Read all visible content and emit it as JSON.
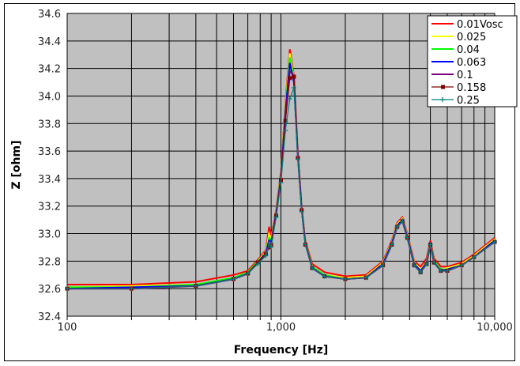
{
  "chart_data": {
    "type": "line",
    "title": "",
    "xlabel": "Frequency [Hz]",
    "ylabel": "Z [ohm]",
    "xscale": "log",
    "xlim": [
      100,
      10000
    ],
    "ylim": [
      32.4,
      34.6
    ],
    "x_tick_labels": [
      "100",
      "1,000",
      "10,000"
    ],
    "y_tick_labels": [
      "32.4",
      "32.6",
      "32.8",
      "33.0",
      "33.2",
      "33.4",
      "33.6",
      "33.8",
      "34.0",
      "34.2",
      "34.4",
      "34.6"
    ],
    "grid": true,
    "plot_background": "#c0c0c0",
    "legend_position": "upper right",
    "x": [
      100,
      200,
      400,
      600,
      700,
      780,
      850,
      880,
      900,
      950,
      1000,
      1050,
      1100,
      1150,
      1200,
      1250,
      1300,
      1400,
      1600,
      2000,
      2500,
      3000,
      3300,
      3500,
      3700,
      3900,
      4200,
      4500,
      4800,
      5000,
      5200,
      5600,
      6000,
      7000,
      8000,
      10000
    ],
    "series": [
      {
        "name": "0.01Vosc",
        "color": "#ff0000",
        "marker": "none",
        "values": [
          32.63,
          32.63,
          32.65,
          32.7,
          32.73,
          32.81,
          32.88,
          33.05,
          32.98,
          33.18,
          33.45,
          33.95,
          34.34,
          34.15,
          33.6,
          33.2,
          32.95,
          32.78,
          32.72,
          32.69,
          32.7,
          32.8,
          32.95,
          33.08,
          33.12,
          33.0,
          32.8,
          32.76,
          32.82,
          32.95,
          32.82,
          32.76,
          32.76,
          32.79,
          32.85,
          32.97
        ]
      },
      {
        "name": "0.025",
        "color": "#ffff00",
        "marker": "none",
        "values": [
          32.61,
          32.62,
          32.63,
          32.68,
          32.72,
          32.8,
          32.87,
          33.0,
          32.96,
          33.17,
          33.43,
          33.92,
          34.31,
          34.13,
          33.59,
          33.19,
          32.94,
          32.76,
          32.7,
          32.68,
          32.69,
          32.79,
          32.94,
          33.07,
          33.11,
          32.99,
          32.79,
          32.74,
          32.8,
          32.93,
          32.8,
          32.74,
          32.75,
          32.78,
          32.84,
          32.96
        ]
      },
      {
        "name": "0.04",
        "color": "#00ff00",
        "marker": "none",
        "values": [
          32.61,
          32.61,
          32.63,
          32.68,
          32.72,
          32.8,
          32.86,
          32.97,
          32.95,
          33.16,
          33.42,
          33.9,
          34.28,
          34.12,
          33.58,
          33.19,
          32.94,
          32.76,
          32.7,
          32.67,
          32.68,
          32.78,
          32.93,
          33.06,
          33.1,
          32.98,
          32.78,
          32.73,
          32.79,
          32.93,
          32.8,
          32.74,
          32.74,
          32.77,
          32.83,
          32.95
        ]
      },
      {
        "name": "0.063",
        "color": "#0000ff",
        "marker": "none",
        "values": [
          32.6,
          32.61,
          32.62,
          32.67,
          32.71,
          32.79,
          32.86,
          32.95,
          32.94,
          33.15,
          33.41,
          33.88,
          34.24,
          34.1,
          33.57,
          33.18,
          32.93,
          32.75,
          32.69,
          32.67,
          32.68,
          32.78,
          32.93,
          33.06,
          33.1,
          32.98,
          32.78,
          32.73,
          32.79,
          32.92,
          32.79,
          32.73,
          32.74,
          32.77,
          32.83,
          32.95
        ]
      },
      {
        "name": "0.1",
        "color": "#800080",
        "marker": "none",
        "values": [
          32.6,
          32.6,
          32.62,
          32.67,
          32.71,
          32.79,
          32.85,
          32.92,
          32.93,
          33.14,
          33.4,
          33.85,
          34.18,
          34.15,
          33.56,
          33.18,
          32.93,
          32.75,
          32.69,
          32.67,
          32.68,
          32.77,
          32.92,
          33.05,
          33.09,
          32.97,
          32.77,
          32.72,
          32.78,
          32.92,
          32.79,
          32.73,
          32.73,
          32.77,
          32.83,
          32.94
        ]
      },
      {
        "name": "0.158",
        "color": "#800000",
        "marker": "circle",
        "values": [
          32.6,
          32.6,
          32.62,
          32.67,
          32.71,
          32.79,
          32.85,
          32.9,
          32.92,
          33.13,
          33.39,
          33.82,
          34.13,
          34.14,
          33.55,
          33.17,
          32.92,
          32.75,
          32.69,
          32.67,
          32.68,
          32.77,
          32.92,
          33.05,
          33.09,
          32.97,
          32.77,
          32.72,
          32.78,
          32.92,
          32.79,
          32.73,
          32.73,
          32.77,
          32.83,
          32.94
        ]
      },
      {
        "name": "0.25",
        "color": "#008080",
        "marker": "plus",
        "values": [
          32.6,
          32.6,
          32.62,
          32.67,
          32.71,
          32.78,
          32.84,
          32.93,
          32.9,
          33.12,
          33.37,
          33.75,
          33.98,
          34.06,
          33.54,
          33.16,
          32.92,
          32.75,
          32.69,
          32.67,
          32.68,
          32.77,
          32.92,
          33.05,
          33.09,
          32.97,
          32.77,
          32.72,
          32.78,
          32.92,
          32.79,
          32.73,
          32.73,
          32.77,
          32.83,
          32.94
        ]
      }
    ]
  }
}
